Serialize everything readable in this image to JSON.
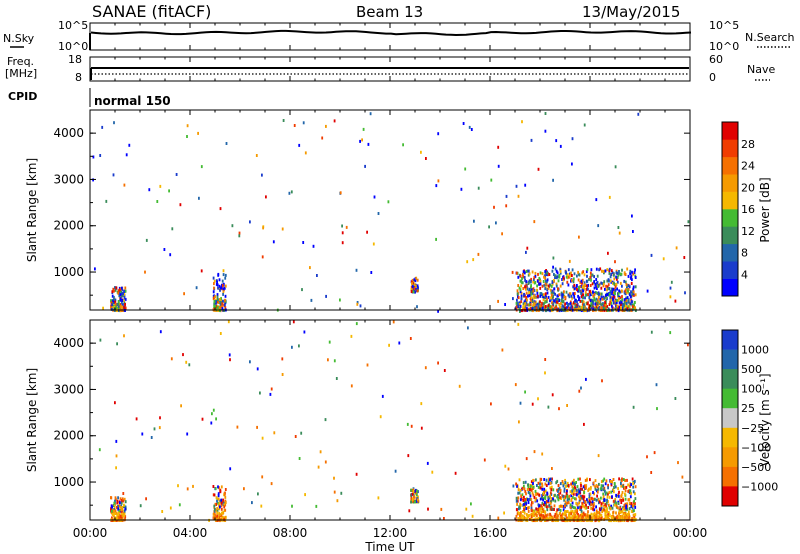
{
  "header": {
    "station": "SANAE (fitACF)",
    "beam": "Beam 13",
    "date": "13/May/2015"
  },
  "noise_panel": {
    "left_label": "N.Sky",
    "left_ticks": [
      "10^5",
      "10^0"
    ],
    "right_label": "N.Search",
    "right_ticks": [
      "10^5",
      "10^0"
    ]
  },
  "freq_panel": {
    "left_label_1": "Freq.",
    "left_label_2": "[MHz]",
    "left_ticks": [
      "18",
      "8"
    ],
    "right_label": "Nave",
    "right_ticks": [
      "60",
      "0"
    ]
  },
  "cpid": {
    "label": "CPID",
    "value": "normal 150"
  },
  "time_axis": {
    "label": "Time UT",
    "ticks": [
      "00:00",
      "04:00",
      "08:00",
      "12:00",
      "16:00",
      "20:00",
      "00:00"
    ]
  },
  "colors": {
    "scale": [
      "#0000ff",
      "#1a3ccc",
      "#2266aa",
      "#3a8c5a",
      "#44bb33",
      "#c8c8c8",
      "#f5b800",
      "#f59a00",
      "#f57000",
      "#f03c00",
      "#e00000"
    ]
  },
  "chart_data": [
    {
      "type": "scatter",
      "panel": "power",
      "ylabel": "Slant Range [km]",
      "yticks": [
        "1000",
        "2000",
        "3000",
        "4000"
      ],
      "ylim": [
        180,
        4500
      ],
      "xlim": [
        0,
        24
      ],
      "colorbar": {
        "label": "Power [dB]",
        "ticks": [
          "4",
          "8",
          "12",
          "16",
          "20",
          "24",
          "28"
        ],
        "range": [
          0,
          32
        ]
      },
      "clusters": [
        {
          "t_start": 0.8,
          "t_end": 1.4,
          "r_min": 200,
          "r_max": 700
        },
        {
          "t_start": 4.9,
          "t_end": 5.4,
          "r_min": 200,
          "r_max": 1000
        },
        {
          "t_start": 12.8,
          "t_end": 13.1,
          "r_min": 600,
          "r_max": 900
        },
        {
          "t_start": 17.0,
          "t_end": 21.8,
          "r_min": 200,
          "r_max": 1100
        }
      ]
    },
    {
      "type": "scatter",
      "panel": "velocity",
      "ylabel": "Slant Range [km]",
      "yticks": [
        "1000",
        "2000",
        "3000",
        "4000"
      ],
      "ylim": [
        180,
        4500
      ],
      "xlim": [
        0,
        24
      ],
      "colorbar": {
        "label": "Velocity [m s⁻¹]",
        "ticks": [
          "1000",
          "500",
          "100",
          "25",
          "−25",
          "−100",
          "−500",
          "−1000"
        ]
      },
      "clusters": [
        {
          "t_start": 0.8,
          "t_end": 1.4,
          "r_min": 200,
          "r_max": 700
        },
        {
          "t_start": 4.9,
          "t_end": 5.4,
          "r_min": 200,
          "r_max": 1000
        },
        {
          "t_start": 12.8,
          "t_end": 13.1,
          "r_min": 600,
          "r_max": 900
        },
        {
          "t_start": 17.0,
          "t_end": 21.8,
          "r_min": 200,
          "r_max": 1100
        }
      ]
    }
  ]
}
